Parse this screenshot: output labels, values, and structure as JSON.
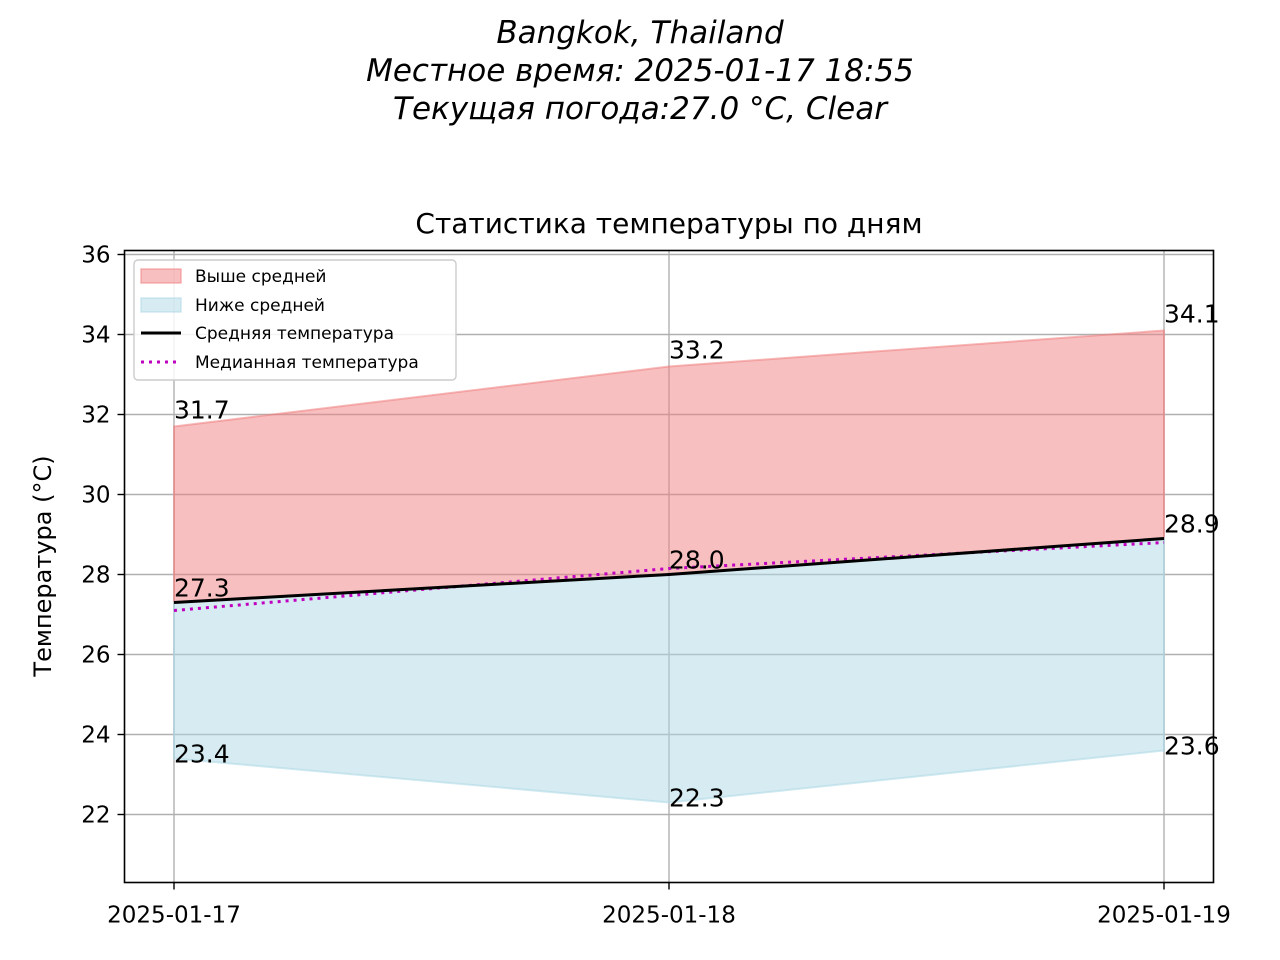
{
  "header": {
    "location": "Bangkok, Thailand",
    "local_time": "Местное время: 2025-01-17 18:55",
    "current_weather": "Текущая погода:27.0 °C, Clear"
  },
  "colors": {
    "above_fill": "#f08080",
    "below_fill": "#add8e6",
    "mean_line": "#000000",
    "median_line": "#bf00bf",
    "grid": "#b0b0b0"
  },
  "chart_data": {
    "type": "area",
    "title": "Статистика температуры по дням",
    "xlabel": "",
    "ylabel": "Температура (°C)",
    "categories": [
      "2025-01-17",
      "2025-01-18",
      "2025-01-19"
    ],
    "ylim": [
      20.3,
      36.1
    ],
    "yticks": [
      22,
      24,
      26,
      28,
      30,
      32,
      34,
      36
    ],
    "grid": true,
    "legend_position": "top-left",
    "series": [
      {
        "name": "Выше средней",
        "kind": "fill_between",
        "lower": [
          27.3,
          28.0,
          28.9
        ],
        "upper": [
          31.7,
          33.2,
          34.1
        ]
      },
      {
        "name": "Ниже средней",
        "kind": "fill_between",
        "lower": [
          23.4,
          22.3,
          23.6
        ],
        "upper": [
          27.3,
          28.0,
          28.9
        ]
      },
      {
        "name": "Средняя температура",
        "kind": "line",
        "values": [
          27.3,
          28.0,
          28.9
        ]
      },
      {
        "name": "Медианная температура",
        "kind": "dotted_line",
        "values": [
          27.1,
          28.15,
          28.8
        ]
      }
    ],
    "annotations": {
      "max": [
        "31.7",
        "33.2",
        "34.1"
      ],
      "mean": [
        "27.3",
        "28.0",
        "28.9"
      ],
      "min": [
        "23.4",
        "22.3",
        "23.6"
      ]
    }
  }
}
